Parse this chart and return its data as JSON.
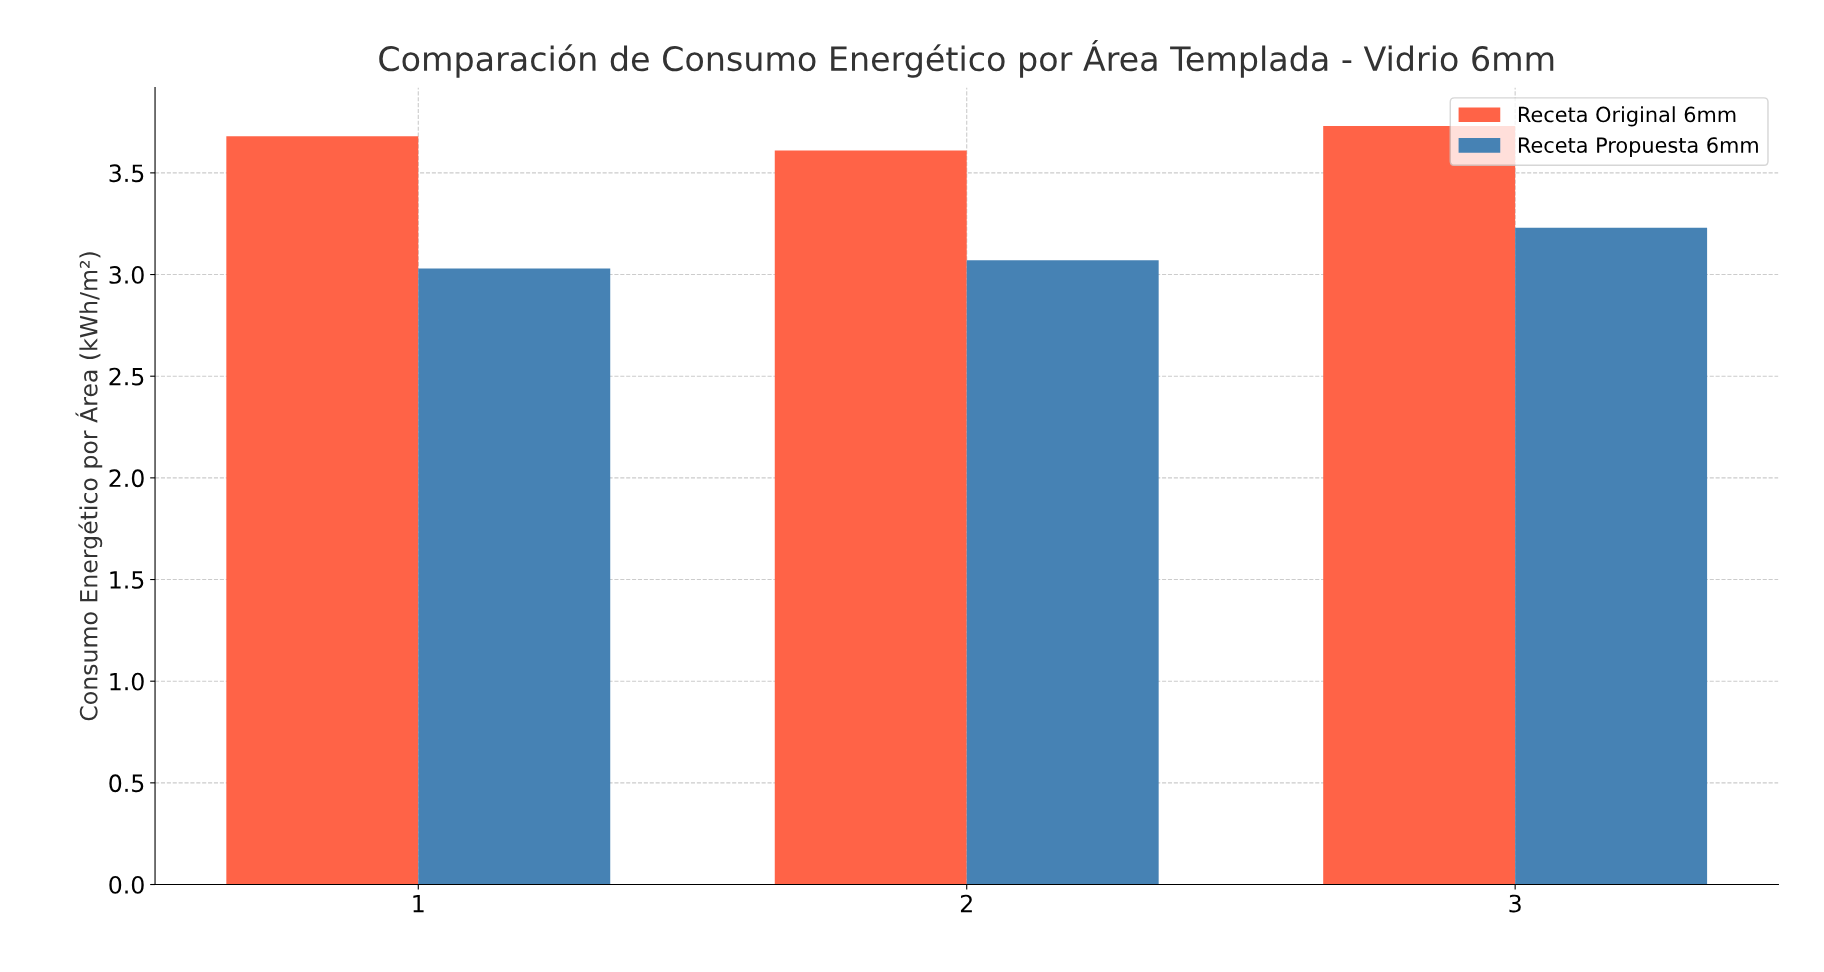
{
  "chart_data": {
    "type": "bar",
    "title": "Comparación de Consumo Energético por Área Templada - Vidrio 6mm",
    "ylabel": "Consumo Energético por Área (kWh/m²)",
    "categories": [
      "1",
      "2",
      "3"
    ],
    "series": [
      {
        "name": "Receta Original 6mm",
        "color": "#ff6347",
        "values": [
          3.68,
          3.61,
          3.73
        ]
      },
      {
        "name": "Receta Propuesta 6mm",
        "color": "#4682b4",
        "values": [
          3.03,
          3.07,
          3.23
        ]
      }
    ],
    "ylim": [
      0,
      3.92
    ],
    "yticks": [
      {
        "value": 0,
        "label": "0.0"
      },
      0.5,
      {
        "value": 1,
        "label": "1.0"
      },
      1.5,
      {
        "value": 2,
        "label": "2.0"
      },
      2.5,
      {
        "value": 3,
        "label": "3.0"
      },
      3.5
    ],
    "grid": true,
    "legend": "top right"
  }
}
